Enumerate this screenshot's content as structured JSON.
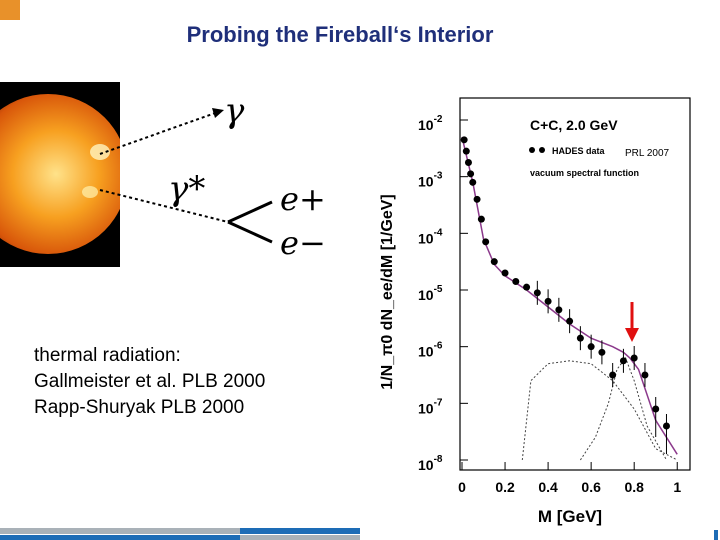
{
  "slide": {
    "title": "Probing the Fireball‘s Interior",
    "refs": [
      "thermal radiation:",
      "Gallmeister et al. PLB 2000",
      "Rapp-Shuryak PLB 2000"
    ]
  },
  "diagram": {
    "photon_label": "γ",
    "virtual_photon_label": "γ*",
    "positron_label": "e+",
    "electron_label": "e−"
  },
  "plot": {
    "annotation": "PRL 2007",
    "header": "C+C, 2.0 GeV",
    "legend_data": "HADES data",
    "legend_curve": "vacuum spectral function",
    "ylabel": "1/N_π0 dN_ee/dM [1/GeV]",
    "xlabel": "M [GeV]",
    "x_ticks": [
      "0",
      "0.2",
      "0.4",
      "0.6",
      "0.8",
      "1"
    ],
    "y_ticks": [
      "10-2",
      "10-3",
      "10-4",
      "10-5",
      "10-6",
      "10-7",
      "10-8"
    ],
    "colors": {
      "arrow": "#e01010",
      "curve": "#8c3a8c",
      "data": "#000000"
    }
  },
  "chart_data": {
    "type": "scatter",
    "title": "C+C, 2.0 GeV",
    "xlabel": "M [GeV]",
    "ylabel": "1/N_π0 dN_ee/dM [1/GeV]",
    "xlim": [
      0,
      1.05
    ],
    "ylim_log10": [
      -8,
      -2
    ],
    "series": [
      {
        "name": "HADES data",
        "x": [
          0.01,
          0.02,
          0.03,
          0.04,
          0.05,
          0.07,
          0.09,
          0.11,
          0.15,
          0.2,
          0.25,
          0.3,
          0.35,
          0.4,
          0.45,
          0.5,
          0.55,
          0.6,
          0.65,
          0.7,
          0.75,
          0.8,
          0.85,
          0.9,
          0.95
        ],
        "log10_y": [
          -2.35,
          -2.55,
          -2.75,
          -2.95,
          -3.1,
          -3.4,
          -3.75,
          -4.15,
          -4.5,
          -4.7,
          -4.85,
          -4.95,
          -5.05,
          -5.2,
          -5.35,
          -5.55,
          -5.85,
          -6.0,
          -6.1,
          -6.5,
          -6.25,
          -6.2,
          -6.5,
          -7.1,
          -7.4
        ]
      },
      {
        "name": "vacuum spectral function",
        "x": [
          0.0,
          0.05,
          0.1,
          0.15,
          0.2,
          0.3,
          0.4,
          0.5,
          0.6,
          0.7,
          0.75,
          0.78,
          0.82,
          0.9,
          1.0
        ],
        "log10_y": [
          -2.3,
          -3.1,
          -4.1,
          -4.55,
          -4.75,
          -5.0,
          -5.3,
          -5.6,
          -5.85,
          -6.0,
          -6.1,
          -6.2,
          -6.4,
          -7.3,
          -7.9
        ]
      }
    ]
  }
}
